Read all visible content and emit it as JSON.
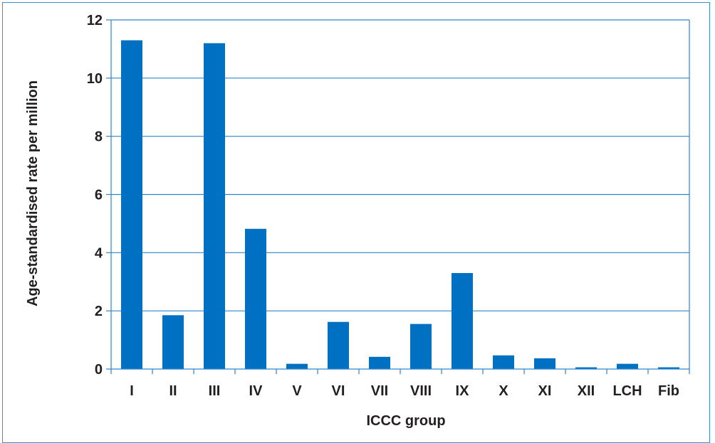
{
  "chart_data": {
    "type": "bar",
    "title": "",
    "xlabel": "ICCC group",
    "ylabel": "Age-standardised rate per million",
    "categories": [
      "I",
      "II",
      "III",
      "IV",
      "V",
      "VI",
      "VII",
      "VIII",
      "IX",
      "X",
      "XI",
      "XII",
      "LCH",
      "Fib"
    ],
    "values": [
      11.3,
      1.85,
      11.2,
      4.82,
      0.18,
      1.62,
      0.42,
      1.55,
      3.3,
      0.47,
      0.37,
      0.06,
      0.18,
      0.06
    ],
    "ylim": [
      0,
      12
    ],
    "yticks": [
      0,
      2,
      4,
      6,
      8,
      10,
      12
    ],
    "grid": "horizontal",
    "bar_color": "#0071c2",
    "grid_color": "#2e86cc"
  }
}
